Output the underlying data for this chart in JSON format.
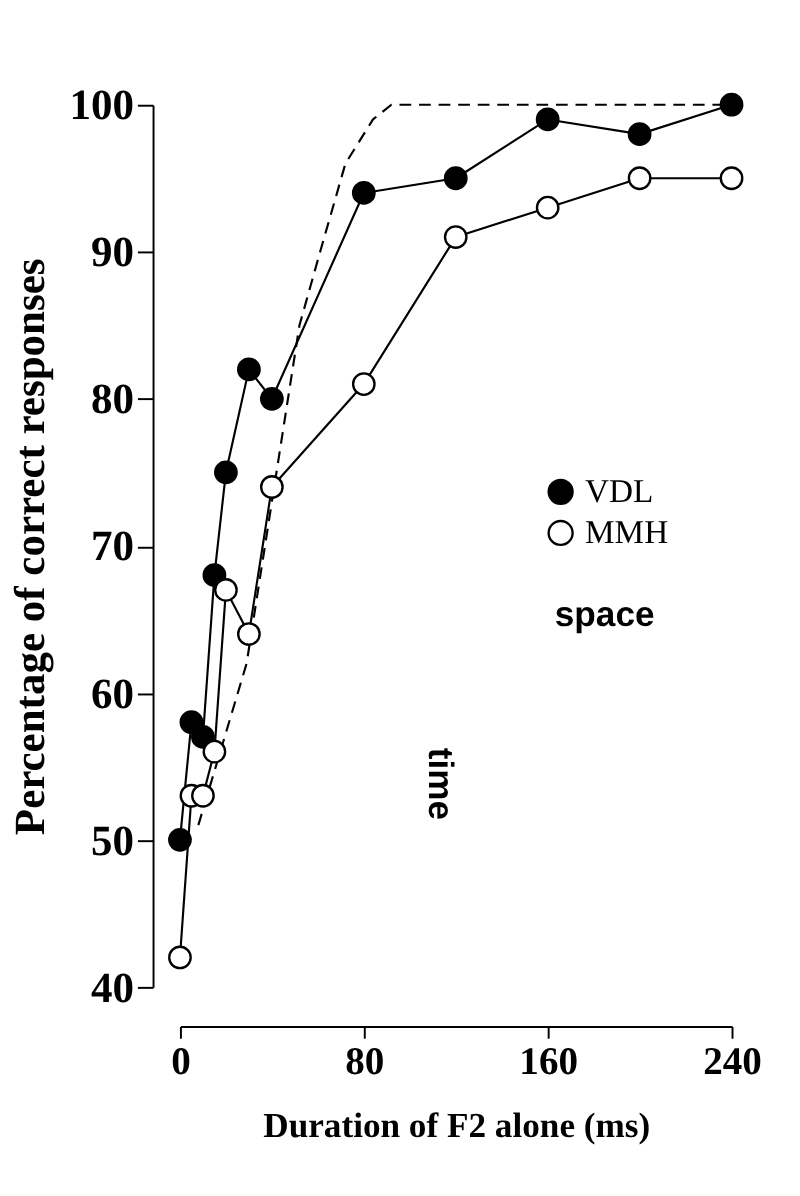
{
  "chart_data": {
    "type": "line",
    "xlabel": "Duration of F2 alone (ms)",
    "ylabel": "Percentage of correct responses",
    "x": [
      0,
      5,
      10,
      15,
      20,
      30,
      40,
      80,
      120,
      160,
      200,
      240
    ],
    "series": [
      {
        "name": "VDL",
        "color": "#000000",
        "values": [
          50,
          58,
          57,
          68,
          75,
          82,
          80,
          94,
          95,
          99,
          98,
          100
        ]
      },
      {
        "name": "MMH",
        "color": "#ffffff",
        "values": [
          42,
          53,
          53,
          56,
          67,
          64,
          74,
          81,
          91,
          93,
          95,
          95
        ]
      },
      {
        "color": "#000000",
        "x": [
          8,
          29,
          43,
          52,
          61,
          72,
          84,
          92,
          240
        ],
        "values": [
          51,
          62,
          76,
          85,
          90,
          96,
          99,
          100,
          100
        ],
        "line_style": "dashed",
        "marker": "none"
      }
    ],
    "xlim": [
      0,
      240
    ],
    "xticks": [
      0,
      80,
      160,
      240
    ],
    "ylim": [
      40,
      100
    ],
    "yticks": [
      40,
      50,
      60,
      70,
      80,
      90,
      100
    ],
    "grid": false,
    "legend": "right",
    "marker": "circle",
    "line_style": "solid",
    "annotations": [
      "space",
      "time"
    ]
  }
}
